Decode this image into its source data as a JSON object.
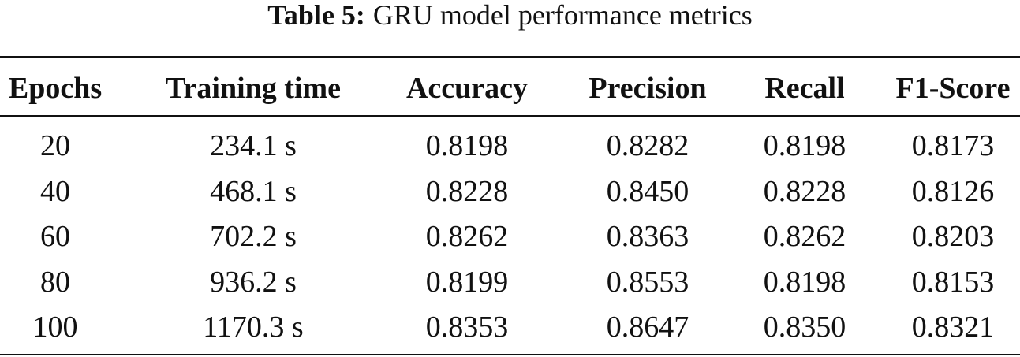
{
  "caption": {
    "label": "Table 5:",
    "text": "GRU model performance metrics"
  },
  "table": {
    "header": [
      "Epochs",
      "Training time",
      "Accuracy",
      "Precision",
      "Recall",
      "F1-Score"
    ],
    "rows": [
      [
        "20",
        "234.1 s",
        "0.8198",
        "0.8282",
        "0.8198",
        "0.8173"
      ],
      [
        "40",
        "468.1 s",
        "0.8228",
        "0.8450",
        "0.8228",
        "0.8126"
      ],
      [
        "60",
        "702.2 s",
        "0.8262",
        "0.8363",
        "0.8262",
        "0.8203"
      ],
      [
        "80",
        "936.2 s",
        "0.8199",
        "0.8553",
        "0.8198",
        "0.8153"
      ],
      [
        "100",
        "1170.3 s",
        "0.8353",
        "0.8647",
        "0.8350",
        "0.8321"
      ]
    ]
  }
}
